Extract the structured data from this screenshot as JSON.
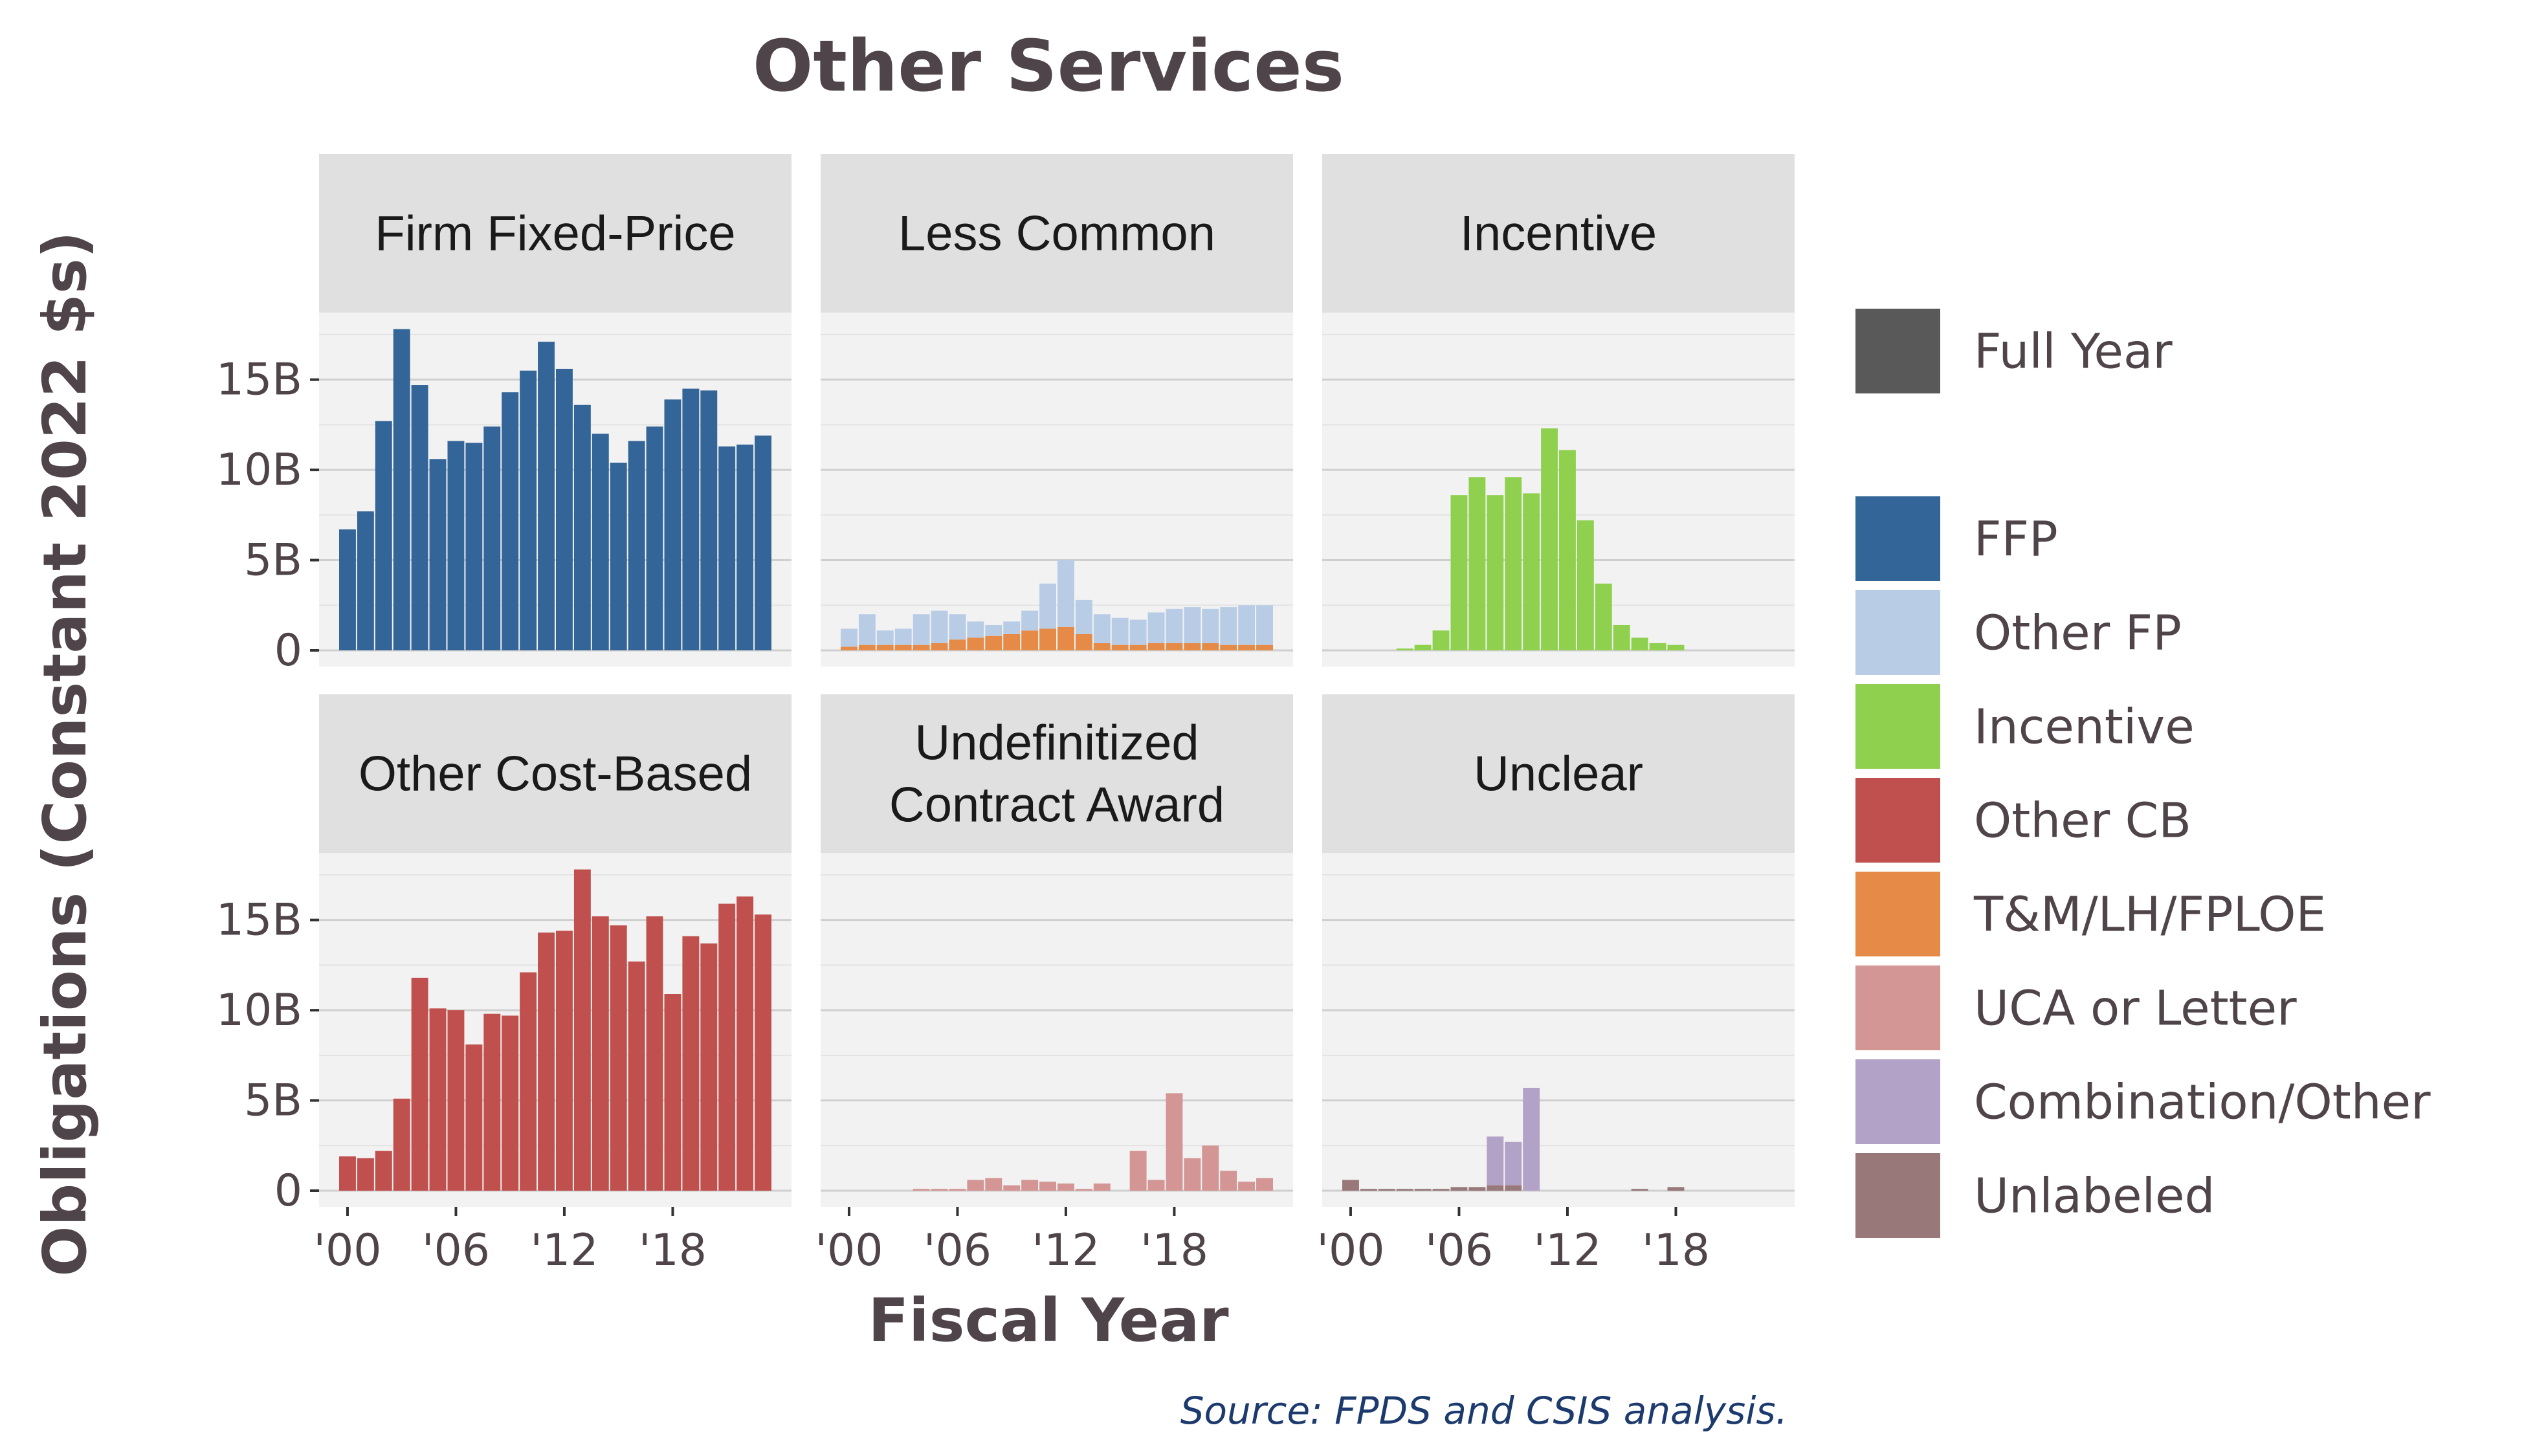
{
  "chart_data": {
    "type": "bar",
    "title": "Other Services",
    "xlabel": "Fiscal Year",
    "ylabel": "Obligations (Constant 2022 $s)",
    "source": "Source: FPDS and CSIS analysis.",
    "layout": "faceted 2x3, shared axes",
    "x": [
      2000,
      2001,
      2002,
      2003,
      2004,
      2005,
      2006,
      2007,
      2008,
      2009,
      2010,
      2011,
      2012,
      2013,
      2014,
      2015,
      2016,
      2017,
      2018,
      2019,
      2020,
      2021,
      2022,
      2023
    ],
    "x_ticks": [
      "'00",
      "'06",
      "'12",
      "'18"
    ],
    "x_tick_values": [
      2000,
      2006,
      2012,
      2018
    ],
    "ylim": [
      0,
      18
    ],
    "y_ticks": [
      "0",
      "5B",
      "10B",
      "15B"
    ],
    "y_tick_values": [
      0,
      5,
      10,
      15
    ],
    "y_unit": "billions",
    "grid": true,
    "legend_position": "right",
    "legend": [
      {
        "label": "Full Year",
        "color": "#595959"
      },
      {
        "label": "FFP",
        "color": "#346599"
      },
      {
        "label": "Other FP",
        "color": "#b8cde5"
      },
      {
        "label": "Incentive",
        "color": "#8fd14f"
      },
      {
        "label": "Other CB",
        "color": "#c0504d"
      },
      {
        "label": "T&M/LH/FPLOE",
        "color": "#e68a47"
      },
      {
        "label": "UCA or Letter",
        "color": "#d49595"
      },
      {
        "label": "Combination/Other",
        "color": "#b3a2c7"
      },
      {
        "label": "Unlabeled",
        "color": "#987878"
      }
    ],
    "facets": [
      {
        "title": "Firm Fixed-Price",
        "series": [
          {
            "name": "FFP",
            "color": "#346599",
            "values": [
              6.7,
              7.7,
              12.7,
              17.8,
              14.7,
              10.6,
              11.6,
              11.5,
              12.4,
              14.3,
              15.5,
              17.1,
              15.6,
              13.6,
              12.0,
              10.4,
              11.6,
              12.4,
              13.9,
              14.5,
              14.4,
              11.3,
              11.4,
              11.9
            ]
          }
        ]
      },
      {
        "title": "Less Common",
        "series": [
          {
            "name": "T&M/LH/FPLOE",
            "color": "#e68a47",
            "values": [
              0.2,
              0.3,
              0.3,
              0.3,
              0.3,
              0.4,
              0.6,
              0.7,
              0.8,
              0.9,
              1.1,
              1.2,
              1.3,
              0.9,
              0.4,
              0.3,
              0.3,
              0.4,
              0.4,
              0.4,
              0.4,
              0.3,
              0.3,
              0.3
            ]
          },
          {
            "name": "Other FP",
            "color": "#b8cde5",
            "values": [
              1.0,
              1.7,
              0.8,
              0.9,
              1.7,
              1.8,
              1.4,
              0.9,
              0.6,
              0.7,
              1.1,
              2.5,
              3.7,
              1.9,
              1.6,
              1.5,
              1.4,
              1.7,
              1.9,
              2.0,
              1.9,
              2.1,
              2.2,
              2.2
            ]
          }
        ]
      },
      {
        "title": "Incentive",
        "series": [
          {
            "name": "Incentive",
            "color": "#8fd14f",
            "values": [
              0,
              0,
              0,
              0.1,
              0.3,
              1.1,
              8.6,
              9.6,
              8.6,
              9.6,
              8.7,
              12.3,
              11.1,
              7.2,
              3.7,
              1.4,
              0.7,
              0.4,
              0.3,
              0,
              0,
              0,
              0,
              0
            ]
          }
        ]
      },
      {
        "title": "Other Cost-Based",
        "series": [
          {
            "name": "Other CB",
            "color": "#c0504d",
            "values": [
              1.9,
              1.8,
              2.2,
              5.1,
              11.8,
              10.1,
              10.0,
              8.1,
              9.8,
              9.7,
              12.1,
              14.3,
              14.4,
              17.8,
              15.2,
              14.7,
              12.7,
              15.2,
              10.9,
              14.1,
              13.7,
              15.9,
              16.3,
              15.3
            ]
          }
        ]
      },
      {
        "title": "Undefinitized\nContract Award",
        "series": [
          {
            "name": "UCA or Letter",
            "color": "#d49595",
            "values": [
              0,
              0,
              0,
              0,
              0.1,
              0.1,
              0.1,
              0.6,
              0.7,
              0.3,
              0.6,
              0.5,
              0.4,
              0.1,
              0.4,
              0,
              2.2,
              0.6,
              5.4,
              1.8,
              2.5,
              1.1,
              0.5,
              0.7
            ]
          }
        ]
      },
      {
        "title": "Unclear",
        "series": [
          {
            "name": "Unlabeled",
            "color": "#987878",
            "values": [
              0.6,
              0.1,
              0.1,
              0.1,
              0.1,
              0.1,
              0.2,
              0.2,
              0.3,
              0.3,
              0,
              0,
              0,
              0,
              0,
              0,
              0.1,
              0,
              0.2,
              0,
              0,
              0,
              0,
              0
            ]
          },
          {
            "name": "Combination/Other",
            "color": "#b3a2c7",
            "values": [
              0,
              0,
              0,
              0,
              0,
              0,
              0,
              0,
              2.7,
              2.4,
              5.7,
              0,
              0,
              0,
              0,
              0,
              0,
              0,
              0,
              0,
              0,
              0,
              0,
              0
            ]
          }
        ]
      }
    ]
  }
}
